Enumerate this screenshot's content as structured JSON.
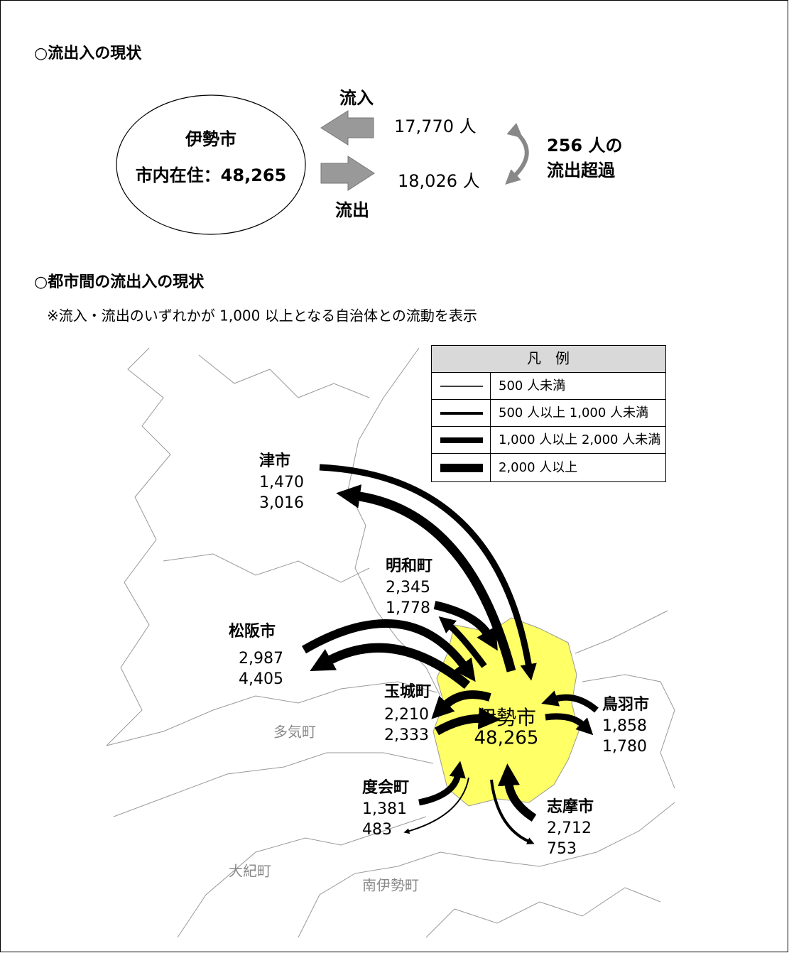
{
  "section1": {
    "title": "○流出入の現状",
    "city": "伊勢市",
    "resident": "市内在住：48,265",
    "inflow_label": "流入",
    "outflow_label": "流出",
    "inflow": "17,770 人",
    "outflow": "18,026 人",
    "net": [
      "256 人の",
      "流出超過"
    ]
  },
  "section2": {
    "title": "○都市間の流出入の現状",
    "note": "※流入・流出のいずれかが 1,000 以上となる自治体との流動を表示"
  },
  "legend": {
    "title": "凡　例",
    "items": [
      "500 人未満",
      "500 人以上 1,000 人未満",
      "1,000 人以上 2,000 人未満",
      "2,000 人以上"
    ]
  },
  "map": {
    "places": [
      {
        "name": "津市",
        "lines": [
          "1,470",
          "3,016"
        ]
      },
      {
        "name": "明和町",
        "lines": [
          "2,345",
          "1,778"
        ]
      },
      {
        "name": "松阪市",
        "lines": [
          "2,987",
          "4,405"
        ]
      },
      {
        "name": "玉城町",
        "lines": [
          "2,210",
          "2,333"
        ]
      },
      {
        "name": "鳥羽市",
        "lines": [
          "1,858",
          "1,780"
        ]
      },
      {
        "name": "度会町",
        "lines": [
          "1,381",
          "483"
        ]
      },
      {
        "name": "志摩市",
        "lines": [
          "2,712",
          "753"
        ]
      }
    ],
    "center": {
      "name": "伊勢市",
      "value": "48,265"
    },
    "other_towns": [
      "多気町",
      "大紀町",
      "南伊勢町"
    ]
  }
}
